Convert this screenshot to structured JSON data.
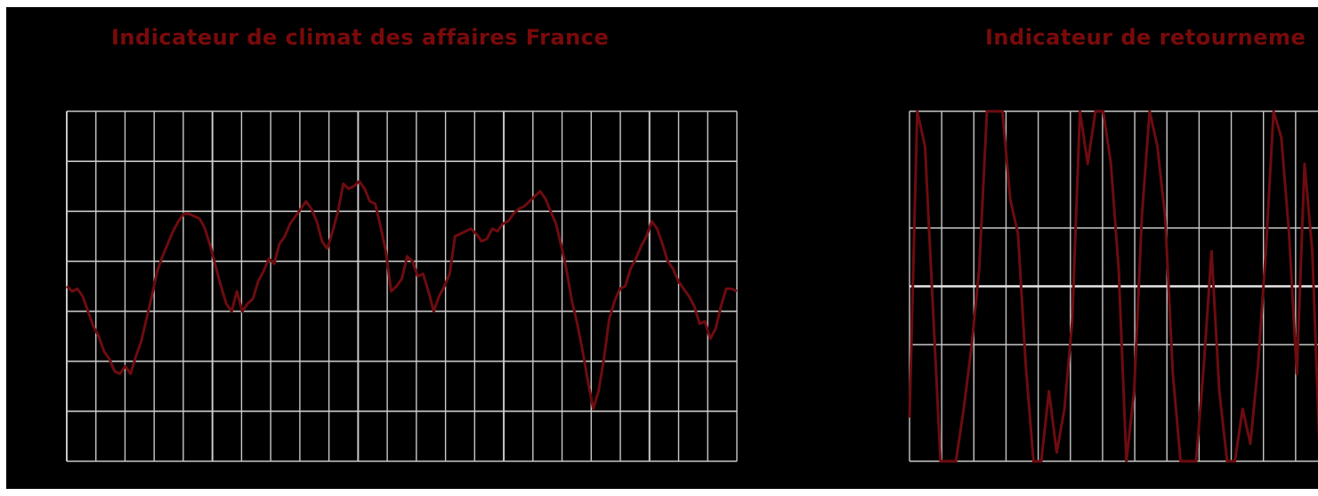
{
  "colors": {
    "background": "#000000",
    "title": "#7a0a0a",
    "series": "#6e0c10",
    "grid": "#c8c8c8",
    "axis": "#e8e8e8"
  },
  "chart_data": [
    {
      "type": "line",
      "title": "Indicateur de climat des affaires France",
      "grid": true,
      "ylim": [
        0,
        7
      ],
      "x_divisions": 23,
      "series": [
        {
          "values": [
            3.5,
            3.4,
            3.45,
            3.3,
            3.0,
            2.7,
            2.5,
            2.2,
            2.05,
            1.8,
            1.75,
            1.9,
            1.75,
            2.1,
            2.4,
            2.85,
            3.3,
            3.8,
            4.1,
            4.35,
            4.6,
            4.8,
            4.95,
            4.95,
            4.9,
            4.85,
            4.65,
            4.3,
            3.9,
            3.5,
            3.15,
            3.0,
            3.4,
            3.0,
            3.15,
            3.25,
            3.6,
            3.8,
            4.05,
            3.95,
            4.35,
            4.5,
            4.75,
            4.9,
            5.05,
            5.2,
            5.05,
            4.8,
            4.4,
            4.25,
            4.6,
            5.0,
            5.55,
            5.45,
            5.5,
            5.6,
            5.45,
            5.2,
            5.15,
            4.7,
            4.2,
            3.4,
            3.5,
            3.65,
            4.1,
            4.0,
            3.7,
            3.75,
            3.4,
            3.0,
            3.3,
            3.5,
            3.75,
            4.5,
            4.55,
            4.6,
            4.65,
            4.55,
            4.4,
            4.45,
            4.65,
            4.6,
            4.75,
            4.8,
            4.95,
            5.05,
            5.1,
            5.2,
            5.3,
            5.4,
            5.25,
            5.0,
            4.75,
            4.3,
            3.8,
            3.2,
            2.75,
            2.2,
            1.6,
            1.05,
            1.4,
            2.05,
            2.85,
            3.2,
            3.45,
            3.5,
            3.85,
            4.05,
            4.3,
            4.5,
            4.8,
            4.65,
            4.35,
            4.0,
            3.85,
            3.6,
            3.45,
            3.3,
            3.1,
            2.75,
            2.8,
            2.45,
            2.65,
            3.1,
            3.45,
            3.45,
            3.4
          ]
        }
      ]
    },
    {
      "type": "line",
      "title": "Indicateur de retourneme",
      "grid": true,
      "ylim": [
        -1,
        1
      ],
      "x_divisions": 13,
      "series": [
        {
          "values": [
            -0.75,
            1.0,
            0.8,
            -0.1,
            -1.0,
            -1.0,
            -1.0,
            -0.7,
            -0.35,
            0.1,
            1.0,
            1.0,
            1.0,
            0.5,
            0.3,
            -0.45,
            -1.0,
            -1.0,
            -0.6,
            -0.95,
            -0.7,
            -0.2,
            1.0,
            0.7,
            1.0,
            1.0,
            0.7,
            0.1,
            -1.0,
            -0.6,
            0.4,
            1.0,
            0.8,
            0.4,
            -0.5,
            -1.0,
            -1.0,
            -1.0,
            -0.45,
            0.2,
            -0.6,
            -1.0,
            -1.0,
            -0.7,
            -0.9,
            -0.45,
            0.2,
            1.0,
            0.85,
            0.3,
            -0.5,
            0.7,
            0.2,
            -1.0,
            -0.6
          ]
        }
      ]
    }
  ]
}
